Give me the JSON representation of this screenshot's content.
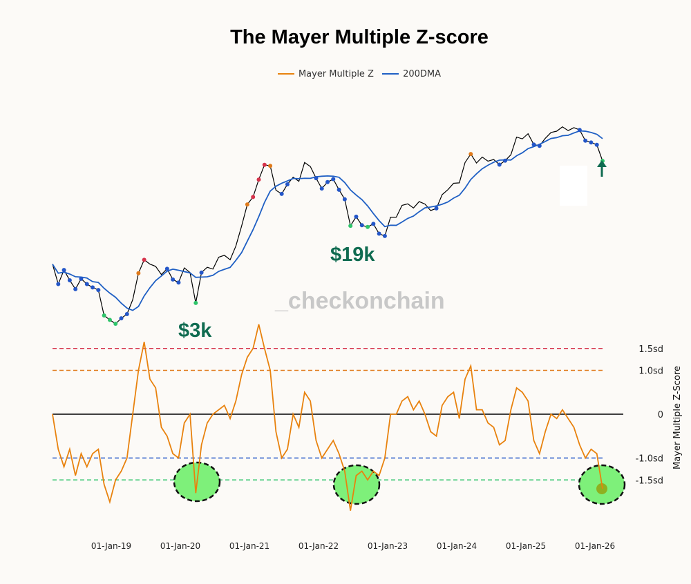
{
  "chart_data": {
    "type": "line",
    "title": "The Mayer Multiple Z-score",
    "legend": {
      "placement": "top-center",
      "entries": [
        "Mayer Multiple Z",
        "200DMA"
      ]
    },
    "y2label": "Mayer Multiple Z-Score",
    "x_ticks": [
      "01-Jan-19",
      "01-Jan-20",
      "01-Jan-21",
      "01-Jan-22",
      "01-Jan-23",
      "01-Jan-24",
      "01-Jan-25",
      "01-Jan-26"
    ],
    "z_levels": [
      {
        "value": 1.5,
        "label": "1.5sd",
        "color": "#d6324a"
      },
      {
        "value": 1.0,
        "label": "1.0sd",
        "color": "#e07a1a"
      },
      {
        "value": 0,
        "label": "0",
        "color": "#000000"
      },
      {
        "value": -1.0,
        "label": "-1.0sd",
        "color": "#2456c8"
      },
      {
        "value": -1.5,
        "label": "-1.5sd",
        "color": "#2ec46a"
      }
    ],
    "start_month": "2018-02",
    "xlim": [
      "2018-02",
      "2026-02"
    ],
    "ylim": [
      -2.5,
      2.5
    ],
    "price_scale": "log",
    "series": [
      {
        "name": "Mayer Multiple Z",
        "color": "#e8820e",
        "values": [
          0.0,
          -0.8,
          -1.2,
          -0.8,
          -1.4,
          -0.9,
          -1.2,
          -0.9,
          -0.8,
          -1.6,
          -2.0,
          -1.5,
          -1.3,
          -1.0,
          0.0,
          1.0,
          1.65,
          0.8,
          0.6,
          -0.3,
          -0.5,
          -0.9,
          -1.0,
          -0.2,
          0.0,
          -1.8,
          -0.7,
          -0.2,
          0.0,
          0.1,
          0.2,
          -0.1,
          0.3,
          0.9,
          1.3,
          1.5,
          2.05,
          1.5,
          1.0,
          -0.4,
          -1.0,
          -0.8,
          0.0,
          -0.3,
          0.5,
          0.3,
          -0.6,
          -1.0,
          -0.8,
          -0.6,
          -0.9,
          -1.3,
          -2.2,
          -1.4,
          -1.3,
          -1.5,
          -1.3,
          -1.4,
          -1.0,
          0.0,
          0.0,
          0.3,
          0.4,
          0.1,
          0.3,
          0.0,
          -0.4,
          -0.5,
          0.2,
          0.4,
          0.5,
          -0.1,
          0.8,
          1.1,
          0.1,
          0.1,
          -0.2,
          -0.3,
          -0.7,
          -0.6,
          0.1,
          0.6,
          0.5,
          0.3,
          -0.6,
          -0.9,
          -0.4,
          0.0,
          -0.1,
          0.1,
          -0.1,
          -0.3,
          -0.7,
          -1.0,
          -0.8,
          -0.9,
          -1.7
        ]
      },
      {
        "name": "Price",
        "color": "#000000",
        "values": [
          10000,
          7000,
          9000,
          7500,
          6400,
          7700,
          7000,
          6600,
          6300,
          4000,
          3700,
          3450,
          3800,
          4100,
          5300,
          8500,
          10800,
          10000,
          9600,
          8300,
          9200,
          7600,
          7200,
          9350,
          8600,
          5000,
          8600,
          9450,
          9150,
          11300,
          11700,
          10800,
          13800,
          19700,
          29000,
          33100,
          45200,
          58800,
          57700,
          37300,
          35000,
          41500,
          47100,
          43800,
          61300,
          57000,
          46300,
          38500,
          43200,
          45500,
          37700,
          31800,
          19800,
          23300,
          20000,
          19400,
          20500,
          17200,
          16500,
          23100,
          23100,
          28500,
          29300,
          27200,
          30500,
          29200,
          26000,
          27000,
          34500,
          37700,
          42300,
          42600,
          61200,
          71300,
          60700,
          67500,
          62700,
          64600,
          59000,
          63300,
          70300,
          96400,
          93400,
          102400,
          84400,
          82500,
          94200,
          104600,
          107100,
          115700,
          108200,
          114000,
          109500,
          90400,
          87500,
          84000,
          63000
        ]
      }
    ],
    "annotations": [
      {
        "text": "$3k",
        "color": "#0f6b50"
      },
      {
        "text": "$19k",
        "color": "#0f6b50"
      }
    ],
    "highlight_color": "#7ef07a"
  },
  "watermark": "_checkonchain"
}
